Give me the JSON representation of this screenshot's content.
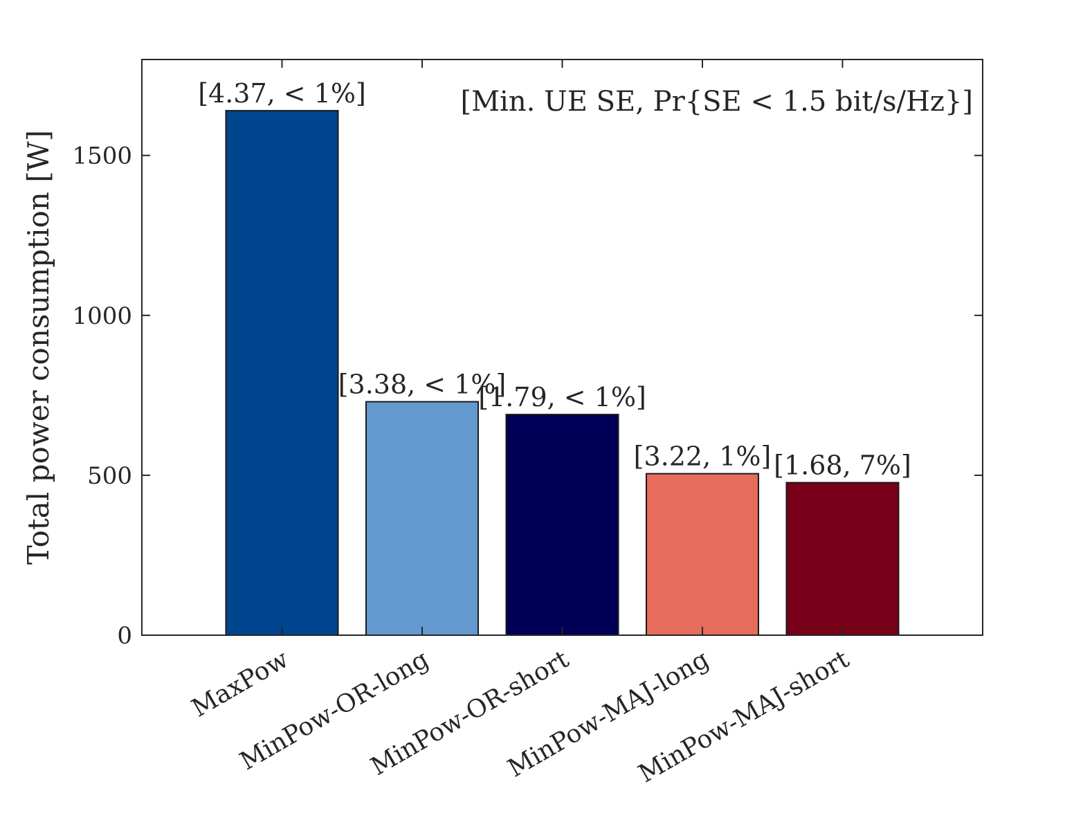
{
  "chart_data": {
    "type": "bar",
    "categories": [
      "MaxPow",
      "MinPow-OR-long",
      "MinPow-OR-short",
      "MinPow-MAJ-long",
      "MinPow-MAJ-short"
    ],
    "values": [
      1640,
      730,
      690,
      505,
      477
    ],
    "bar_colors": [
      "#00468f",
      "#6499d0",
      "#000059",
      "#e66c5b",
      "#780018"
    ],
    "data_labels": [
      "[4.37, < 1%]",
      "[3.38, < 1%]",
      "[1.79, < 1%]",
      "[3.22, 1%]",
      "[1.68, 7%]"
    ],
    "title": "",
    "xlabel": "",
    "ylabel": "Total power consumption [W]",
    "ylim": [
      0,
      1800
    ],
    "yticks": [
      0,
      500,
      1000,
      1500
    ],
    "ytick_labels": [
      "0",
      "500",
      "1000",
      "1500"
    ],
    "annotation": "[Min. UE SE, Pr{SE < 1.5 bit/s/Hz}]",
    "grid": false,
    "legend": "none"
  }
}
